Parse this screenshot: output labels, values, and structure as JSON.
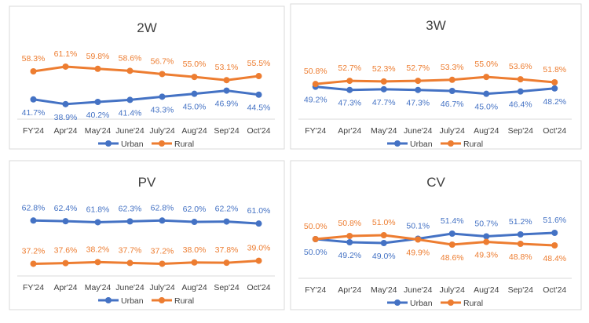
{
  "chart_data": [
    {
      "type": "line",
      "title": "2W",
      "categories": [
        "FY'24",
        "Apr'24",
        "May'24",
        "June'24",
        "July'24",
        "Aug'24",
        "Sep'24",
        "Oct'24"
      ],
      "series": [
        {
          "name": "Urban",
          "color": "#4472C4",
          "values": [
            41.7,
            38.9,
            40.2,
            41.4,
            43.3,
            45.0,
            46.9,
            44.5
          ]
        },
        {
          "name": "Rural",
          "color": "#ED7D31",
          "values": [
            58.3,
            61.1,
            59.8,
            58.6,
            56.7,
            55.0,
            53.1,
            55.5
          ]
        }
      ],
      "ylim": [
        30,
        75
      ],
      "legend": "bottom",
      "grid": false
    },
    {
      "type": "line",
      "title": "3W",
      "categories": [
        "FY'24",
        "Apr'24",
        "May'24",
        "June'24",
        "July'24",
        "Aug'24",
        "Sep'24",
        "Oct'24"
      ],
      "series": [
        {
          "name": "Urban",
          "color": "#4472C4",
          "values": [
            49.2,
            47.3,
            47.7,
            47.3,
            46.7,
            45.0,
            46.4,
            48.2
          ]
        },
        {
          "name": "Rural",
          "color": "#ED7D31",
          "values": [
            50.8,
            52.7,
            52.3,
            52.7,
            53.3,
            55.0,
            53.6,
            51.8
          ]
        }
      ],
      "ylim": [
        30,
        75
      ],
      "legend": "bottom",
      "grid": false
    },
    {
      "type": "line",
      "title": "PV",
      "categories": [
        "FY'24",
        "Apr'24",
        "May'24",
        "June'24",
        "July'24",
        "Aug'24",
        "Sep'24",
        "Oct'24"
      ],
      "series": [
        {
          "name": "Urban",
          "color": "#4472C4",
          "values": [
            62.8,
            62.4,
            61.8,
            62.3,
            62.8,
            62.0,
            62.2,
            61.0
          ]
        },
        {
          "name": "Rural",
          "color": "#ED7D31",
          "values": [
            37.2,
            37.6,
            38.2,
            37.7,
            37.2,
            38.0,
            37.8,
            39.0
          ]
        }
      ],
      "ylim": [
        30,
        75
      ],
      "legend": "bottom",
      "grid": false
    },
    {
      "type": "line",
      "title": "CV",
      "categories": [
        "FY'24",
        "Apr'24",
        "May'24",
        "June'24",
        "July'24",
        "Aug'24",
        "Sep'24",
        "Oct'24"
      ],
      "series": [
        {
          "name": "Urban",
          "color": "#4472C4",
          "values": [
            50.0,
            49.2,
            49.0,
            50.1,
            51.4,
            50.7,
            51.2,
            51.6
          ]
        },
        {
          "name": "Rural",
          "color": "#ED7D31",
          "values": [
            50.0,
            50.8,
            51.0,
            49.9,
            48.6,
            49.3,
            48.8,
            48.4
          ]
        }
      ],
      "ylim": [
        40,
        60
      ],
      "legend": "bottom",
      "grid": false
    }
  ]
}
